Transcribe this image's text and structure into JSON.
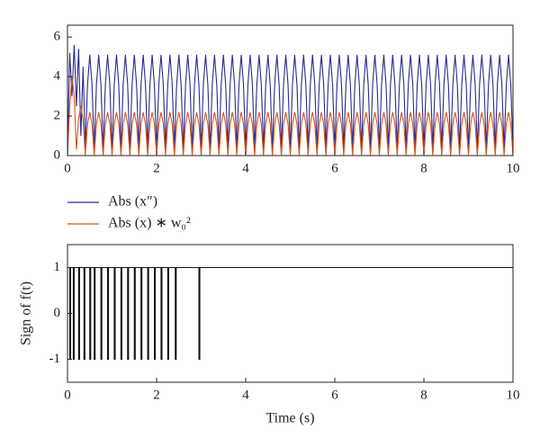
{
  "chart_data": [
    {
      "type": "line",
      "legend": "below",
      "xlim": [
        0,
        10
      ],
      "xticks": [
        0,
        2,
        4,
        6,
        8,
        10
      ],
      "ylim": [
        0,
        6.6
      ],
      "yticks": [
        0,
        2,
        4,
        6
      ],
      "x": [
        0,
        0.05,
        0.1,
        0.15,
        0.2,
        0.25,
        0.3,
        0.35,
        0.4,
        0.45,
        0.5,
        0.55,
        0.6,
        0.65,
        0.7,
        0.75,
        0.8,
        0.85,
        0.9,
        0.95,
        1,
        1.05,
        1.1,
        1.15,
        1.2,
        1.25,
        1.3,
        1.35,
        1.4,
        1.45,
        1.5,
        1.55,
        1.6,
        1.65,
        1.7,
        1.75,
        1.8,
        1.85,
        1.9,
        1.95,
        2,
        2.05,
        2.1,
        2.15,
        2.2,
        2.25,
        2.3,
        2.35,
        2.4,
        2.45,
        2.5,
        2.55,
        2.6,
        2.65,
        2.7,
        2.75,
        2.8,
        2.85,
        2.9,
        2.95,
        3,
        3.05,
        3.1,
        3.15,
        3.2,
        3.25,
        3.3,
        3.35,
        3.4,
        3.45,
        3.5,
        3.55,
        3.6,
        3.65,
        3.7,
        3.75,
        3.8,
        3.85,
        3.9,
        3.95,
        4,
        4.05,
        4.1,
        4.15,
        4.2,
        4.25,
        4.3,
        4.35,
        4.4,
        4.45,
        4.5,
        4.55,
        4.6,
        4.65,
        4.7,
        4.75,
        4.8,
        4.85,
        4.9,
        4.95,
        5,
        5.05,
        5.1,
        5.15,
        5.2,
        5.25,
        5.3,
        5.35,
        5.4,
        5.45,
        5.5,
        5.55,
        5.6,
        5.65,
        5.7,
        5.75,
        5.8,
        5.85,
        5.9,
        5.95,
        6,
        6.05,
        6.1,
        6.15,
        6.2,
        6.25,
        6.3,
        6.35,
        6.4,
        6.45,
        6.5,
        6.55,
        6.6,
        6.65,
        6.7,
        6.75,
        6.8,
        6.85,
        6.9,
        6.95,
        7,
        7.05,
        7.1,
        7.15,
        7.2,
        7.25,
        7.3,
        7.35,
        7.4,
        7.45,
        7.5,
        7.55,
        7.6,
        7.65,
        7.7,
        7.75,
        7.8,
        7.85,
        7.9,
        7.95,
        8,
        8.05,
        8.1,
        8.15,
        8.2,
        8.25,
        8.3,
        8.35,
        8.4,
        8.45,
        8.5,
        8.55,
        8.6,
        8.65,
        8.7,
        8.75,
        8.8,
        8.85,
        8.9,
        8.95,
        9,
        9.05,
        9.1,
        9.15,
        9.2,
        9.25,
        9.3,
        9.35,
        9.4,
        9.45,
        9.5,
        9.55,
        9.6,
        9.65,
        9.7,
        9.75,
        9.8,
        9.85,
        9.9,
        9.95,
        10
      ],
      "series": [
        {
          "name": "Abs (x″)",
          "color": "#2b2b8c",
          "values": [
            0,
            5.2,
            3.0,
            5.6,
            2.5,
            5.4,
            1.0,
            4.5,
            0.3,
            3.6,
            5.1,
            3.6,
            0.3,
            3.6,
            5.1,
            3.6,
            0.3,
            3.6,
            5.1,
            3.6,
            0.3,
            3.6,
            5.1,
            3.6,
            0.3,
            3.6,
            5.1,
            3.6,
            0.3,
            3.6,
            5.1,
            3.6,
            0.3,
            3.6,
            5.1,
            3.6,
            0.3,
            3.6,
            5.1,
            3.6,
            0.3,
            3.6,
            5.1,
            3.6,
            0.3,
            3.6,
            5.1,
            3.6,
            0.3,
            3.6,
            5.1,
            3.6,
            0.3,
            3.6,
            5.1,
            3.6,
            0.3,
            3.6,
            5.1,
            3.6,
            0.3,
            3.6,
            5.1,
            3.6,
            0.3,
            3.6,
            5.1,
            3.6,
            0.3,
            3.6,
            5.1,
            3.6,
            0.3,
            3.6,
            5.1,
            3.6,
            0.3,
            3.6,
            5.1,
            3.6,
            0.3,
            3.6,
            5.1,
            3.6,
            0.3,
            3.6,
            5.1,
            3.6,
            0.3,
            3.6,
            5.1,
            3.6,
            0.3,
            3.6,
            5.1,
            3.6,
            0.3,
            3.6,
            5.1,
            3.6,
            0.3,
            3.6,
            5.1,
            3.6,
            0.3,
            3.6,
            5.1,
            3.6,
            0.3,
            3.6,
            5.1,
            3.6,
            0.3,
            3.6,
            5.1,
            3.6,
            0.3,
            3.6,
            5.1,
            3.6,
            0.3,
            3.6,
            5.1,
            3.6,
            0.3,
            3.6,
            5.1,
            3.6,
            0.3,
            3.6,
            5.1,
            3.6,
            0.3,
            3.6,
            5.1,
            3.6,
            0.3,
            3.6,
            5.1,
            3.6,
            0.3,
            3.6,
            5.1,
            3.6,
            0.3,
            3.6,
            5.1,
            3.6,
            0.3,
            3.6,
            5.1,
            3.6,
            0.3,
            3.6,
            5.1,
            3.6,
            0.3,
            3.6,
            5.1,
            3.6,
            0.3,
            3.6,
            5.1,
            3.6,
            0.3,
            3.6,
            5.1,
            3.6,
            0.3,
            3.6,
            5.1,
            3.6,
            0.3,
            3.6,
            5.1,
            3.6,
            0.3,
            3.6,
            5.1,
            3.6,
            0.3,
            3.6,
            5.1,
            3.6,
            0.3,
            3.6,
            5.1,
            3.6,
            0.3,
            3.6,
            5.1,
            3.6,
            0.3,
            3.6,
            5.1,
            3.6,
            0.3,
            3.6,
            5.1,
            3.6,
            0.3
          ]
        },
        {
          "name": "Abs (x) ∗ w₀²",
          "color": "#d9541e",
          "values": [
            0,
            2.5,
            4.0,
            3.0,
            0.3,
            1.9,
            2.5,
            1.8,
            0,
            1.6,
            2.2,
            1.6,
            0,
            1.6,
            2.2,
            1.6,
            0,
            1.6,
            2.2,
            1.6,
            0,
            1.6,
            2.2,
            1.6,
            0,
            1.6,
            2.2,
            1.6,
            0,
            1.6,
            2.2,
            1.6,
            0,
            1.6,
            2.2,
            1.6,
            0,
            1.6,
            2.2,
            1.6,
            0,
            1.6,
            2.2,
            1.6,
            0,
            1.6,
            2.2,
            1.6,
            0,
            1.6,
            2.2,
            1.6,
            0,
            1.6,
            2.2,
            1.6,
            0,
            1.6,
            2.2,
            1.6,
            0,
            1.6,
            2.2,
            1.6,
            0,
            1.6,
            2.2,
            1.6,
            0,
            1.6,
            2.2,
            1.6,
            0,
            1.6,
            2.2,
            1.6,
            0,
            1.6,
            2.2,
            1.6,
            0,
            1.6,
            2.2,
            1.6,
            0,
            1.6,
            2.2,
            1.6,
            0,
            1.6,
            2.2,
            1.6,
            0,
            1.6,
            2.2,
            1.6,
            0,
            1.6,
            2.2,
            1.6,
            0,
            1.6,
            2.2,
            1.6,
            0,
            1.6,
            2.2,
            1.6,
            0,
            1.6,
            2.2,
            1.6,
            0,
            1.6,
            2.2,
            1.6,
            0,
            1.6,
            2.2,
            1.6,
            0,
            1.6,
            2.2,
            1.6,
            0,
            1.6,
            2.2,
            1.6,
            0,
            1.6,
            2.2,
            1.6,
            0,
            1.6,
            2.2,
            1.6,
            0,
            1.6,
            2.2,
            1.6,
            0,
            1.6,
            2.2,
            1.6,
            0,
            1.6,
            2.2,
            1.6,
            0,
            1.6,
            2.2,
            1.6,
            0,
            1.6,
            2.2,
            1.6,
            0,
            1.6,
            2.2,
            1.6,
            0,
            1.6,
            2.2,
            1.6,
            0,
            1.6,
            2.2,
            1.6,
            0,
            1.6,
            2.2,
            1.6,
            0,
            1.6,
            2.2,
            1.6,
            0,
            1.6,
            2.2,
            1.6,
            0,
            1.6,
            2.2,
            1.6,
            0,
            1.6,
            2.2,
            1.6,
            0,
            1.6,
            2.2,
            1.6,
            0,
            1.6,
            2.2,
            1.6,
            0,
            1.6,
            2.2,
            1.6,
            0
          ]
        }
      ]
    },
    {
      "type": "line",
      "xlabel": "Time (s)",
      "ylabel": "Sign of f(t)",
      "xlim": [
        0,
        10
      ],
      "xticks": [
        0,
        2,
        4,
        6,
        8,
        10
      ],
      "ylim": [
        -1.5,
        1.5
      ],
      "yticks": [
        -1,
        0,
        1
      ],
      "x": [
        0,
        0.05,
        0.05,
        0.07,
        0.07,
        0.13,
        0.13,
        0.15,
        0.15,
        0.25,
        0.25,
        0.27,
        0.27,
        0.37,
        0.37,
        0.39,
        0.39,
        0.5,
        0.5,
        0.52,
        0.52,
        0.6,
        0.6,
        0.62,
        0.62,
        0.75,
        0.75,
        0.77,
        0.77,
        0.9,
        0.9,
        0.92,
        0.92,
        1.05,
        1.05,
        1.07,
        1.07,
        1.2,
        1.2,
        1.22,
        1.22,
        1.35,
        1.35,
        1.37,
        1.37,
        1.5,
        1.5,
        1.52,
        1.52,
        1.65,
        1.65,
        1.67,
        1.67,
        1.8,
        1.8,
        1.82,
        1.82,
        1.95,
        1.95,
        1.97,
        1.97,
        2.1,
        2.1,
        2.12,
        2.12,
        2.25,
        2.25,
        2.27,
        2.27,
        2.42,
        2.42,
        2.44,
        2.44,
        2.95,
        2.95,
        2.97,
        2.97,
        10
      ],
      "series": [
        {
          "color": "#111111",
          "values": [
            1,
            1,
            -1,
            -1,
            1,
            1,
            -1,
            -1,
            1,
            1,
            -1,
            -1,
            1,
            1,
            -1,
            -1,
            1,
            1,
            -1,
            -1,
            1,
            1,
            -1,
            -1,
            1,
            1,
            -1,
            -1,
            1,
            1,
            -1,
            -1,
            1,
            1,
            -1,
            -1,
            1,
            1,
            -1,
            -1,
            1,
            1,
            -1,
            -1,
            1,
            1,
            -1,
            -1,
            1,
            1,
            -1,
            -1,
            1,
            1,
            -1,
            -1,
            1,
            1,
            -1,
            -1,
            1,
            1,
            -1,
            -1,
            1,
            1,
            -1,
            -1,
            1,
            1,
            -1,
            -1,
            1,
            1,
            -1,
            -1,
            1,
            1
          ]
        }
      ]
    }
  ]
}
